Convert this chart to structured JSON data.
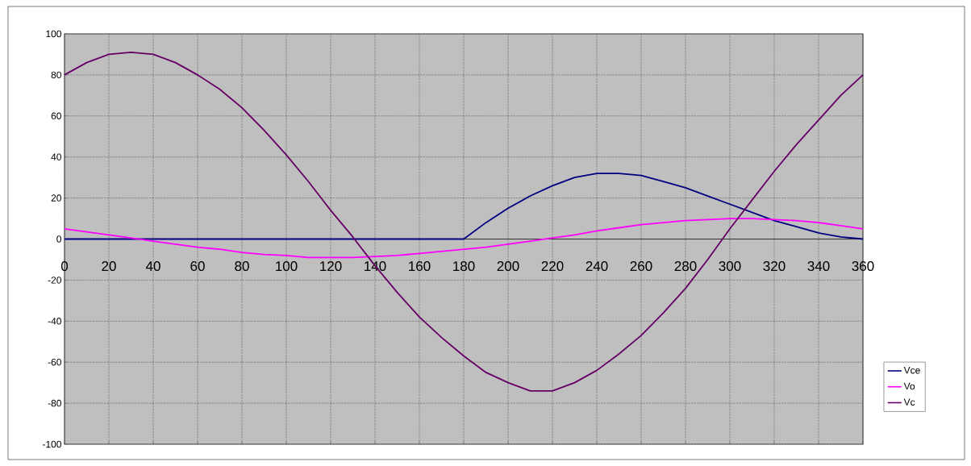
{
  "chart_data": {
    "type": "line",
    "x": [
      0,
      10,
      20,
      30,
      40,
      50,
      60,
      70,
      80,
      90,
      100,
      110,
      120,
      130,
      140,
      150,
      160,
      170,
      180,
      190,
      200,
      210,
      220,
      230,
      240,
      250,
      260,
      270,
      280,
      290,
      300,
      310,
      320,
      330,
      340,
      350,
      360
    ],
    "series": [
      {
        "name": "Vce",
        "color": "#000080",
        "values": [
          0,
          0,
          0,
          0,
          0,
          0,
          0,
          0,
          0,
          0,
          0,
          0,
          0,
          0,
          0,
          0,
          0,
          0,
          0,
          8,
          15,
          21,
          26,
          30,
          32,
          32,
          31,
          28,
          25,
          21,
          17,
          13,
          9,
          6,
          3,
          1,
          0
        ]
      },
      {
        "name": "Vo",
        "color": "#ff00ff",
        "values": [
          5,
          3.5,
          2,
          0.5,
          -1,
          -2.5,
          -4,
          -5,
          -6.5,
          -7.5,
          -8,
          -9,
          -9,
          -9,
          -8.5,
          -8,
          -7,
          -6,
          -5,
          -4,
          -2.5,
          -1,
          0.5,
          2,
          4,
          5.5,
          7,
          8,
          9,
          9.5,
          10,
          10,
          9.5,
          9,
          8,
          6.5,
          5
        ]
      },
      {
        "name": "Vc",
        "color": "#660066",
        "values": [
          80,
          86,
          90,
          91,
          90,
          86,
          80,
          73,
          64,
          53,
          41,
          28,
          14,
          1,
          -13,
          -26,
          -38,
          -48,
          -57,
          -65,
          -70,
          -74,
          -74,
          -70,
          -64,
          -56,
          -47,
          -36,
          -24,
          -10,
          5,
          19,
          33,
          46,
          58,
          70,
          80
        ]
      }
    ],
    "xlim": [
      0,
      360
    ],
    "ylim": [
      -100,
      100
    ],
    "xticks": [
      0,
      20,
      40,
      60,
      80,
      100,
      120,
      140,
      160,
      180,
      200,
      220,
      240,
      260,
      280,
      300,
      320,
      340,
      360
    ],
    "yticks": [
      -100,
      -80,
      -60,
      -40,
      -20,
      0,
      20,
      40,
      60,
      80,
      100
    ],
    "grid": true,
    "legend": "right"
  }
}
